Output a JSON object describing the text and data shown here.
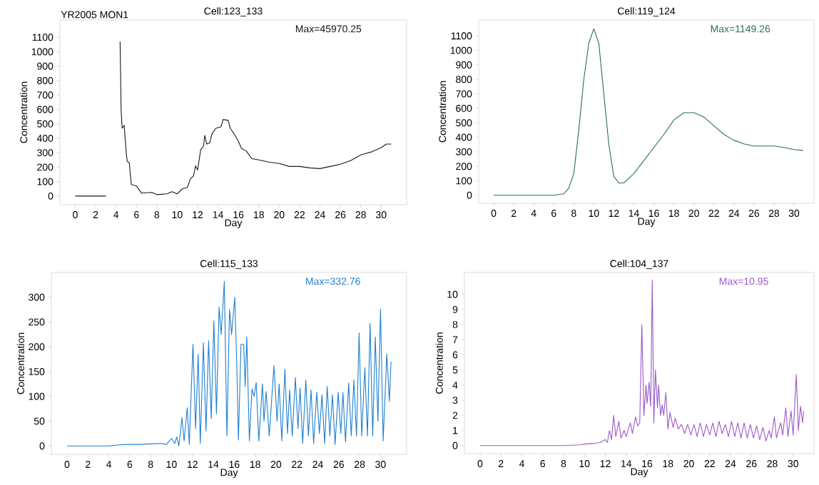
{
  "chart_data": [
    {
      "type": "line",
      "title": "Cell:123_133",
      "xlabel": "Day",
      "ylabel": "Concentration",
      "color": "#1a1a1a",
      "annotations": [
        "YR2005  MON1",
        "Max=45970.25"
      ],
      "xlim": [
        -1.5,
        32.5
      ],
      "ylim": [
        -60,
        1220
      ],
      "xticks": [
        0,
        2,
        4,
        6,
        8,
        10,
        12,
        14,
        16,
        18,
        20,
        22,
        24,
        26,
        28,
        30
      ],
      "yticks": [
        0,
        100,
        200,
        300,
        400,
        500,
        600,
        700,
        800,
        900,
        1000,
        1100
      ],
      "x": [
        0,
        3,
        3.5,
        4.4,
        4.5,
        4.6,
        4.8,
        5.0,
        5.1,
        5.3,
        5.5,
        6.0,
        6.5,
        7.5,
        8,
        9,
        9.5,
        10,
        10.5,
        11,
        11.3,
        11.6,
        11.8,
        12,
        12.3,
        12.6,
        12.7,
        12.9,
        13.2,
        13.4,
        13.8,
        14.3,
        14.5,
        15.0,
        15.2,
        15.5,
        16,
        16.3,
        16.8,
        17.3,
        18,
        19,
        20,
        21,
        22,
        23,
        24,
        25,
        26,
        27,
        28,
        29,
        30,
        30.5,
        31
      ],
      "values": [
        0,
        0,
        null,
        1070,
        600,
        470,
        490,
        300,
        240,
        230,
        80,
        70,
        20,
        25,
        10,
        15,
        30,
        15,
        50,
        60,
        120,
        140,
        210,
        180,
        320,
        350,
        420,
        360,
        370,
        430,
        470,
        480,
        530,
        525,
        470,
        440,
        380,
        330,
        310,
        260,
        250,
        235,
        225,
        205,
        205,
        195,
        190,
        205,
        220,
        245,
        285,
        305,
        335,
        360,
        360
      ]
    },
    {
      "type": "line",
      "title": "Cell:119_124",
      "xlabel": "Day",
      "ylabel": "Concentration",
      "color": "#2a6e5e",
      "annotations": [
        "Max=1149.26"
      ],
      "xlim": [
        -1.5,
        32
      ],
      "ylim": [
        -55,
        1210
      ],
      "xticks": [
        0,
        2,
        4,
        6,
        8,
        10,
        12,
        14,
        16,
        18,
        20,
        22,
        24,
        26,
        28,
        30
      ],
      "yticks": [
        0,
        100,
        200,
        300,
        400,
        500,
        600,
        700,
        800,
        900,
        1000,
        1100
      ],
      "x": [
        0,
        6,
        7,
        7.5,
        8,
        8.5,
        9,
        9.5,
        10,
        10.5,
        11,
        11.5,
        12,
        12.5,
        13,
        14,
        15,
        16,
        17,
        18,
        19,
        20,
        21,
        22,
        23,
        24,
        25,
        26,
        27,
        28,
        29,
        30,
        30.9
      ],
      "values": [
        0,
        0,
        10,
        50,
        150,
        450,
        800,
        1050,
        1149,
        1050,
        700,
        350,
        130,
        85,
        85,
        150,
        240,
        330,
        420,
        520,
        570,
        570,
        540,
        480,
        420,
        380,
        355,
        340,
        340,
        340,
        330,
        315,
        310
      ]
    },
    {
      "type": "line",
      "title": "Cell:115_133",
      "xlabel": "Day",
      "ylabel": "Concentration",
      "color": "#1f7fd0",
      "annotations": [
        "Max=332.76"
      ],
      "xlim": [
        -1.5,
        32.5
      ],
      "ylim": [
        -17,
        350
      ],
      "xticks": [
        0,
        2,
        4,
        6,
        8,
        10,
        12,
        14,
        16,
        18,
        20,
        22,
        24,
        26,
        28,
        30
      ],
      "yticks": [
        0,
        50,
        100,
        150,
        200,
        250,
        300
      ],
      "x": [
        0,
        4,
        5,
        6,
        7,
        8,
        9,
        9.5,
        9.8,
        10,
        10.3,
        10.5,
        10.7,
        11,
        11.2,
        11.5,
        11.7,
        12.05,
        12.3,
        12.55,
        12.75,
        13.05,
        13.3,
        13.55,
        13.8,
        14.05,
        14.3,
        14.55,
        14.75,
        15.05,
        15.3,
        15.55,
        15.75,
        16.05,
        16.25,
        16.4,
        16.65,
        16.9,
        17.05,
        17.2,
        17.45,
        17.7,
        17.9,
        18.1,
        18.35,
        18.7,
        18.85,
        19.05,
        19.35,
        19.8,
        20.1,
        20.3,
        20.55,
        20.85,
        21.1,
        21.3,
        21.55,
        21.85,
        22.1,
        22.3,
        22.55,
        22.85,
        23.1,
        23.35,
        23.6,
        23.9,
        24.15,
        24.4,
        24.65,
        24.9,
        25.15,
        25.4,
        25.65,
        25.95,
        26.2,
        26.4,
        26.65,
        26.95,
        27.2,
        27.45,
        27.7,
        27.95,
        28.2,
        28.5,
        28.75,
        29.0,
        29.25,
        29.5,
        29.75,
        30.0,
        30.25,
        30.6,
        30.85,
        31.0
      ],
      "values": [
        0,
        0,
        2,
        3,
        3,
        4,
        5,
        3,
        10,
        15,
        5,
        18,
        0,
        57,
        10,
        77,
        3,
        205,
        35,
        185,
        5,
        208,
        30,
        212,
        55,
        252,
        65,
        280,
        225,
        332,
        20,
        275,
        225,
        300,
        160,
        12,
        205,
        205,
        120,
        220,
        10,
        115,
        100,
        128,
        10,
        125,
        50,
        110,
        20,
        162,
        50,
        125,
        10,
        155,
        25,
        113,
        20,
        138,
        35,
        117,
        5,
        133,
        20,
        113,
        5,
        108,
        25,
        103,
        5,
        120,
        20,
        103,
        3,
        108,
        25,
        108,
        8,
        127,
        20,
        133,
        20,
        228,
        20,
        158,
        20,
        247,
        20,
        220,
        50,
        276,
        10,
        185,
        90,
        170
      ]
    },
    {
      "type": "line",
      "title": "Cell:104_137",
      "xlabel": "Day",
      "ylabel": "Concentration",
      "color": "#9b59c8",
      "annotations": [
        "Max=10.95"
      ],
      "xlim": [
        -1.5,
        32
      ],
      "ylim": [
        -0.53,
        11.45
      ],
      "xticks": [
        0,
        2,
        4,
        6,
        8,
        10,
        12,
        14,
        16,
        18,
        20,
        22,
        24,
        26,
        28,
        30
      ],
      "yticks": [
        0,
        1,
        2,
        3,
        4,
        5,
        6,
        7,
        8,
        9,
        10
      ],
      "x": [
        0,
        8,
        9.5,
        10,
        11,
        11.5,
        12,
        12.2,
        12.4,
        12.6,
        12.8,
        13,
        13.3,
        13.5,
        13.8,
        14,
        14.4,
        14.6,
        14.9,
        15.1,
        15.3,
        15.5,
        15.7,
        15.9,
        16.0,
        16.2,
        16.35,
        16.5,
        16.65,
        16.8,
        17,
        17.1,
        17.3,
        17.45,
        17.6,
        17.8,
        18,
        18.2,
        18.5,
        18.7,
        19,
        19.3,
        19.6,
        19.9,
        20.2,
        20.5,
        20.8,
        21.1,
        21.4,
        21.7,
        22,
        22.3,
        22.6,
        22.9,
        23.2,
        23.5,
        23.8,
        24.1,
        24.4,
        24.7,
        25,
        25.3,
        25.6,
        25.9,
        26.2,
        26.5,
        26.8,
        27.1,
        27.4,
        27.7,
        27.9,
        28.2,
        28.4,
        28.8,
        29,
        29.3,
        29.5,
        29.8,
        30,
        30.3,
        30.5,
        30.7,
        30.9,
        31
      ],
      "values": [
        0,
        0,
        0.05,
        0.1,
        0.15,
        0.2,
        0.4,
        0.2,
        1.0,
        0.4,
        2.0,
        0.6,
        1.6,
        0.5,
        1.0,
        0.6,
        1.5,
        0.8,
        1.9,
        1.3,
        1.5,
        8.0,
        2.0,
        4.0,
        2.8,
        4.2,
        2.6,
        10.95,
        1.5,
        5.0,
        2.5,
        4.0,
        2.0,
        2.7,
        2.0,
        3.5,
        1.1,
        2.2,
        1.2,
        1.8,
        1.1,
        1.4,
        0.8,
        1.4,
        0.7,
        1.4,
        0.6,
        1.5,
        0.6,
        1.4,
        0.7,
        1.5,
        0.6,
        1.6,
        0.8,
        1.4,
        0.6,
        1.6,
        0.6,
        1.5,
        0.5,
        1.5,
        0.5,
        1.4,
        0.5,
        1.3,
        0.4,
        1.2,
        0.3,
        1.0,
        0.5,
        1.9,
        0.5,
        1.5,
        0.7,
        2.5,
        0.6,
        2.3,
        0.7,
        4.7,
        1.0,
        2.6,
        1.5,
        2.3
      ]
    }
  ]
}
